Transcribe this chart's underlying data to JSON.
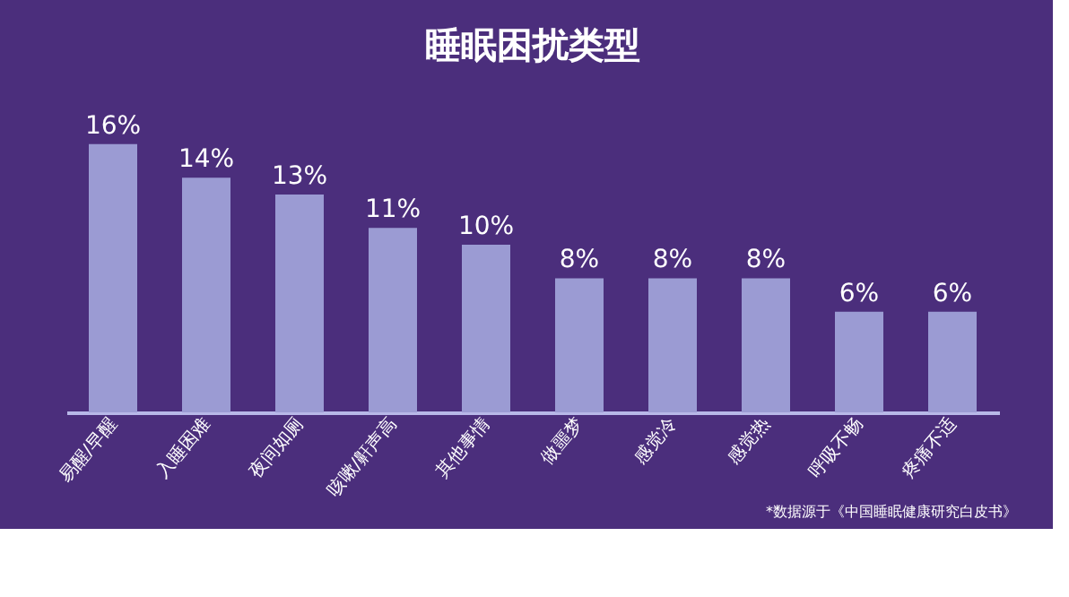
{
  "chart_data": {
    "type": "bar",
    "title": "睡眠困扰类型",
    "categories": [
      "易醒/早醒",
      "入睡困难",
      "夜间如厕",
      "咳嗽/鼾声高",
      "其他事情",
      "做噩梦",
      "感觉冷",
      "感觉热",
      "呼吸不畅",
      "疼痛不适"
    ],
    "values": [
      16,
      14,
      13,
      11,
      10,
      8,
      8,
      8,
      6,
      6
    ],
    "value_labels": [
      "16%",
      "14%",
      "13%",
      "11%",
      "10%",
      "8%",
      "8%",
      "8%",
      "6%",
      "6%"
    ],
    "color": "#9b9bd3",
    "annotations": [
      "*数据源于《中国睡眠健康研究白皮书》"
    ],
    "grid": false
  }
}
